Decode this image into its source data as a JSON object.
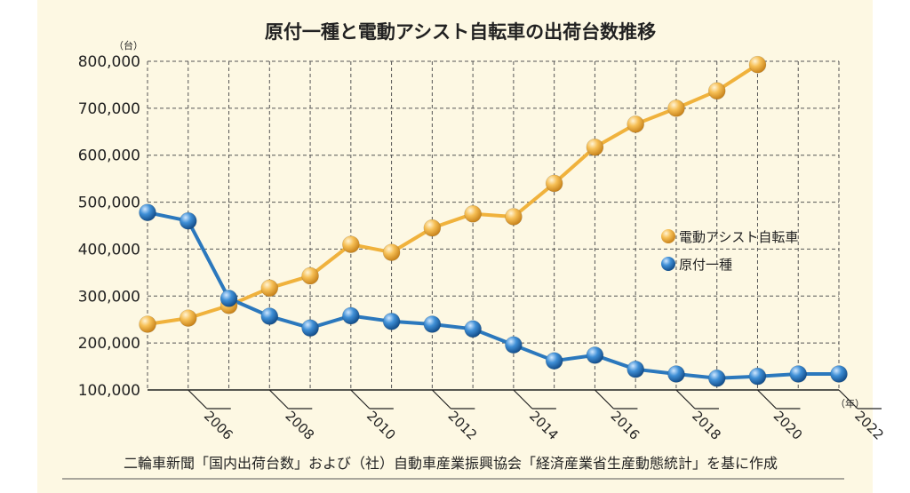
{
  "chart_data": {
    "type": "line",
    "title": "原付一種と電動アシスト自転車の出荷台数推移",
    "y_unit": "（台）",
    "x_unit": "（年）",
    "x": [
      2005,
      2006,
      2007,
      2008,
      2009,
      2010,
      2011,
      2012,
      2013,
      2014,
      2015,
      2016,
      2017,
      2018,
      2019,
      2020,
      2021,
      2022
    ],
    "x_tick_labels": [
      "2006",
      "2008",
      "2010",
      "2012",
      "2014",
      "2016",
      "2018",
      "2020",
      "2022"
    ],
    "x_tick_values": [
      2006,
      2008,
      2010,
      2012,
      2014,
      2016,
      2018,
      2020,
      2022
    ],
    "y_ticks": [
      100000,
      200000,
      300000,
      400000,
      500000,
      600000,
      700000,
      800000
    ],
    "y_tick_labels": [
      "100,000",
      "200,000",
      "300,000",
      "400,000",
      "500,000",
      "600,000",
      "700,000",
      "800,000"
    ],
    "ylim": [
      100000,
      800000
    ],
    "grid": true,
    "legend_position": "right",
    "series": [
      {
        "name": "電動アシスト自転車",
        "color": "#f0b23c",
        "x": [
          2005,
          2006,
          2007,
          2008,
          2009,
          2010,
          2011,
          2012,
          2013,
          2014,
          2015,
          2016,
          2017,
          2018,
          2019,
          2020
        ],
        "values": [
          240000,
          253000,
          280000,
          317000,
          343000,
          410000,
          393000,
          445000,
          475000,
          469000,
          540000,
          617000,
          666000,
          700000,
          737000,
          793000
        ]
      },
      {
        "name": "原付一種",
        "color": "#2b78bd",
        "x": [
          2005,
          2006,
          2007,
          2008,
          2009,
          2010,
          2011,
          2012,
          2013,
          2014,
          2015,
          2016,
          2017,
          2018,
          2019,
          2020,
          2021,
          2022
        ],
        "values": [
          478000,
          460000,
          295000,
          257000,
          232000,
          258000,
          246000,
          240000,
          230000,
          196000,
          162000,
          174000,
          144000,
          134000,
          125000,
          129000,
          134000,
          134000
        ]
      }
    ],
    "source": "二輪車新聞「国内出荷台数」および（社）自動車産業振興協会「経済産業省生産動態統計」を基に作成"
  }
}
